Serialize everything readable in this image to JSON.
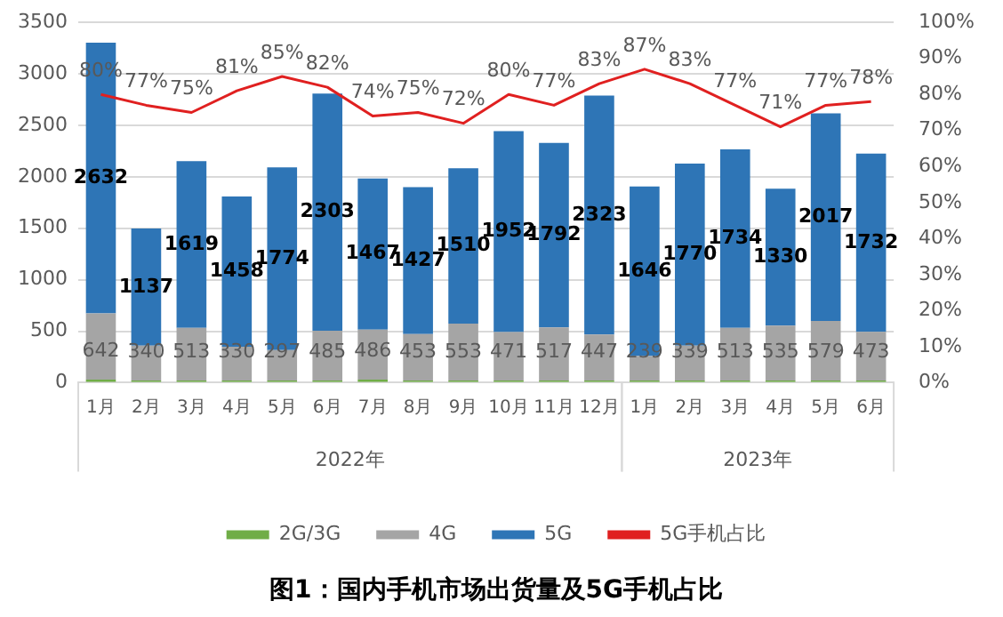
{
  "chart_data": {
    "type": "bar",
    "stacked": true,
    "title": "图1：国内手机市场出货量及5G手机占比",
    "categories": [
      "1月",
      "2月",
      "3月",
      "4月",
      "5月",
      "6月",
      "7月",
      "8月",
      "9月",
      "10月",
      "11月",
      "12月",
      "1月",
      "2月",
      "3月",
      "4月",
      "5月",
      "6月"
    ],
    "annotations": [
      "2022年",
      "2023年"
    ],
    "series": [
      {
        "name": "2G/3G",
        "color": "#70ad47",
        "values": [
          30,
          20,
          20,
          20,
          20,
          20,
          30,
          20,
          20,
          20,
          20,
          20,
          20,
          20,
          20,
          20,
          20,
          20
        ]
      },
      {
        "name": "4G",
        "color": "#a5a5a5",
        "values": [
          642,
          340,
          513,
          330,
          297,
          485,
          486,
          453,
          553,
          471,
          517,
          447,
          239,
          339,
          513,
          535,
          579,
          473
        ],
        "value_labels": [
          "642",
          "340",
          "513",
          "330",
          "297",
          "485",
          "486",
          "453",
          "553",
          "471",
          "517",
          "447",
          "239",
          "339",
          "513",
          "535",
          "579",
          "473"
        ]
      },
      {
        "name": "5G",
        "color": "#2e75b6",
        "values": [
          2632,
          1137,
          1619,
          1458,
          1774,
          2303,
          1467,
          1427,
          1510,
          1952,
          1792,
          2323,
          1646,
          1770,
          1734,
          1330,
          2017,
          1732
        ],
        "value_labels": [
          "2632",
          "1137",
          "1619",
          "1458",
          "1774",
          "2303",
          "1467",
          "1427",
          "1510",
          "1952",
          "1792",
          "2323",
          "1646",
          "1770",
          "1734",
          "1330",
          "2017",
          "1732"
        ]
      },
      {
        "name": "5G手机占比",
        "type": "line",
        "axis": "y2",
        "color": "#e02020",
        "values": [
          80,
          77,
          75,
          81,
          85,
          82,
          74,
          75,
          72,
          80,
          77,
          83,
          87,
          83,
          77,
          71,
          77,
          78
        ],
        "value_labels": [
          "80%",
          "77%",
          "75%",
          "81%",
          "85%",
          "82%",
          "74%",
          "75%",
          "72%",
          "80%",
          "77%",
          "83%",
          "87%",
          "83%",
          "77%",
          "71%",
          "77%",
          "78%"
        ]
      }
    ],
    "ylim": [
      0,
      3500
    ],
    "yticks": [
      0,
      500,
      1000,
      1500,
      2000,
      2500,
      3000,
      3500
    ],
    "y2lim": [
      0,
      100
    ],
    "y2ticks": [
      {
        "value": 0,
        "label": "0%"
      },
      {
        "value": 10,
        "label": "10%"
      },
      {
        "value": 20,
        "label": "20%"
      },
      {
        "value": 30,
        "label": "30%"
      },
      {
        "value": 40,
        "label": "40%"
      },
      {
        "value": 50,
        "label": "50%"
      },
      {
        "value": 60,
        "label": "60%"
      },
      {
        "value": 70,
        "label": "70%"
      },
      {
        "value": 80,
        "label": "80%"
      },
      {
        "value": 90,
        "label": "90%"
      },
      {
        "value": 100,
        "label": "100%"
      }
    ],
    "grid": "y",
    "legend": "bottom",
    "marker": "none"
  }
}
